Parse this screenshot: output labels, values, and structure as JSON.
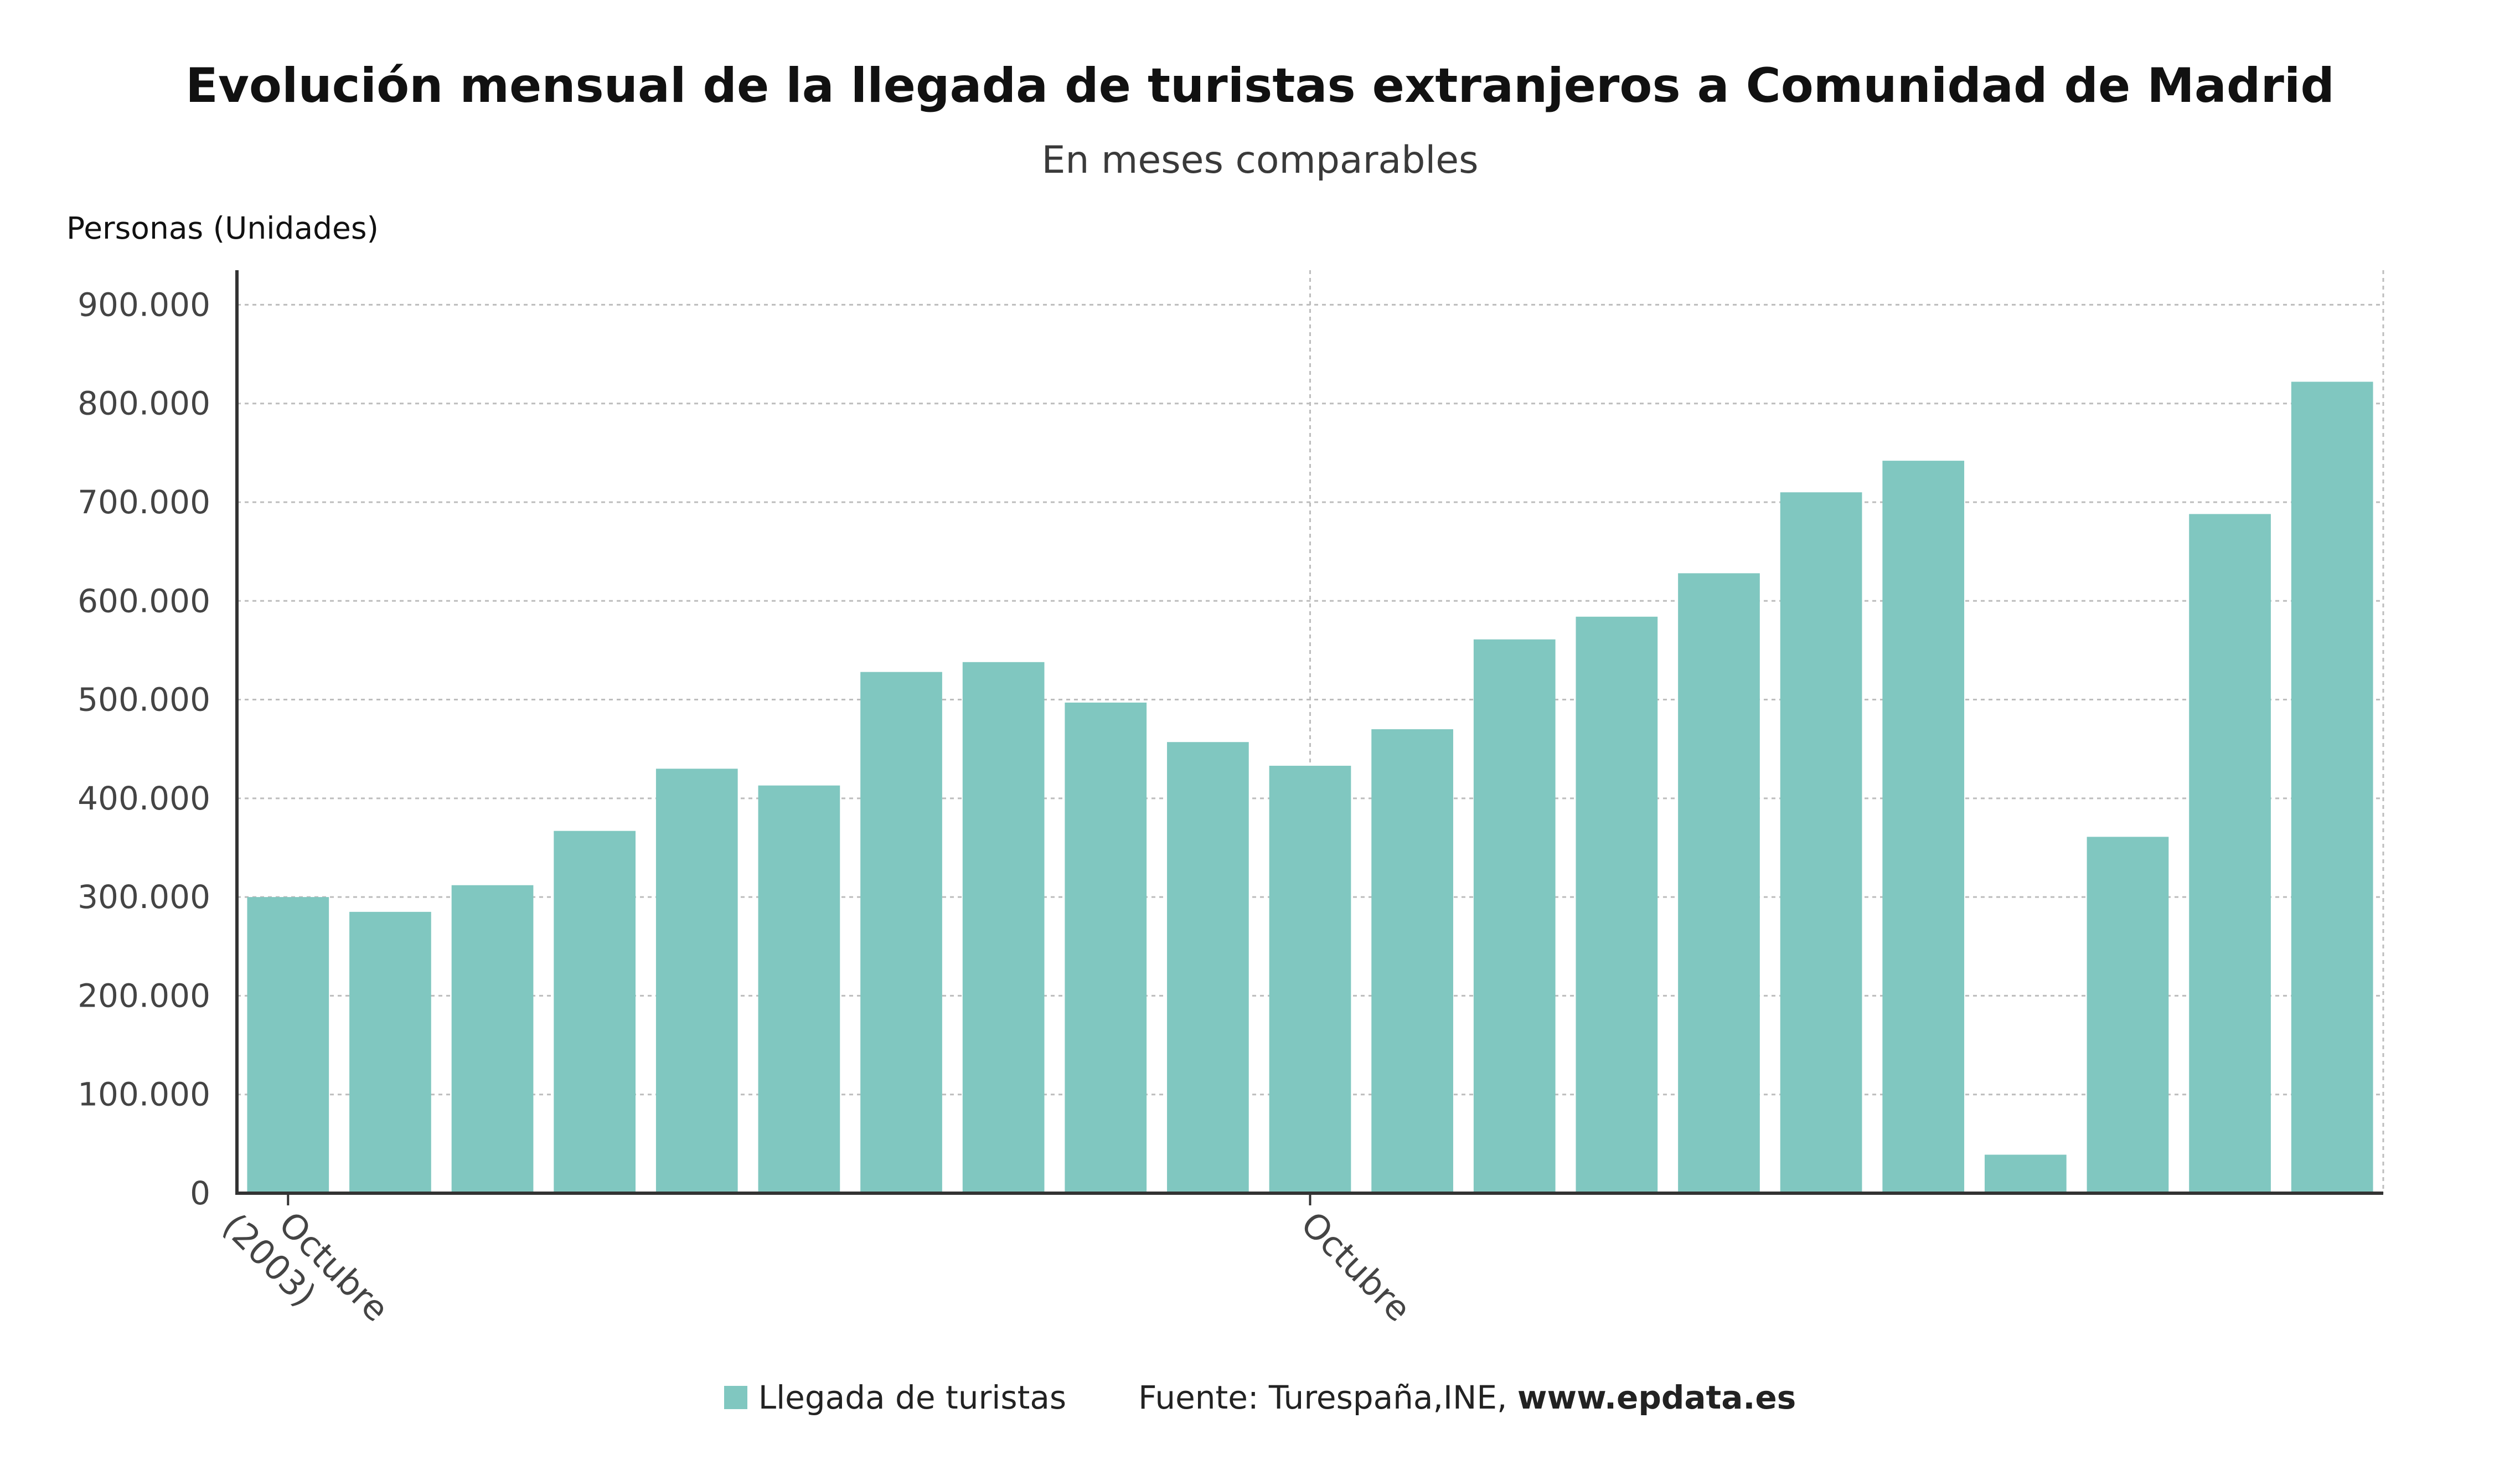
{
  "chart_data": {
    "type": "bar",
    "title": "Evolución mensual de la llegada de turistas extranjeros a Comunidad de Madrid",
    "subtitle": "En meses comparables",
    "ylabel": "Personas (Unidades)",
    "xlabel": "",
    "ylim": [
      0,
      935000
    ],
    "y_ticks": [
      0,
      100000,
      200000,
      300000,
      400000,
      500000,
      600000,
      700000,
      800000,
      900000
    ],
    "y_tick_labels": [
      "0",
      "100.000",
      "200.000",
      "300.000",
      "400.000",
      "500.000",
      "600.000",
      "700.000",
      "800.000",
      "900.000"
    ],
    "x_tick_labels": [
      {
        "index": 0,
        "text": "Octubre (2003)"
      },
      {
        "index": 10,
        "text": "Octubre"
      }
    ],
    "grid": true,
    "legend_position": "bottom",
    "series": [
      {
        "name": "Llegada de turistas",
        "color": "#80c7c0",
        "values": [
          300000,
          285000,
          312000,
          367000,
          430000,
          413000,
          528000,
          538000,
          497000,
          457000,
          433000,
          470000,
          561000,
          584000,
          628000,
          710000,
          742000,
          39000,
          361000,
          688000,
          822000
        ]
      }
    ],
    "source_label": "Fuente: Turespaña,INE,",
    "source_site": "www.epdata.es"
  }
}
